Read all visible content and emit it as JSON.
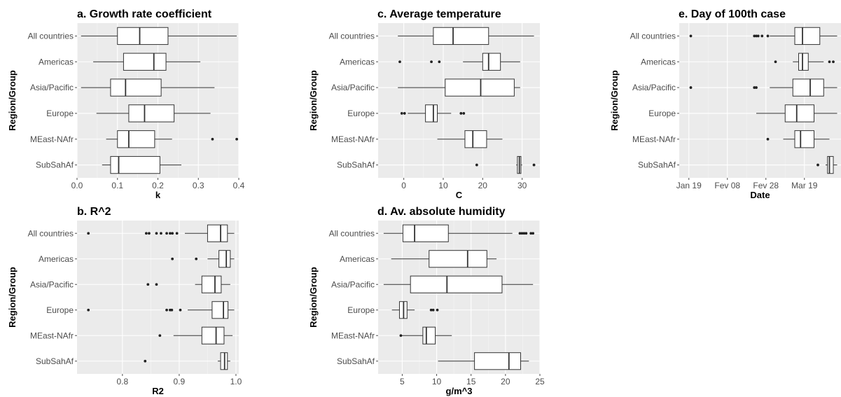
{
  "chart_data": [
    {
      "type": "box",
      "title": "a. Growth rate coefficient",
      "xlabel": "k",
      "ylabel": "Region/Group",
      "xlim": [
        0,
        0.4
      ],
      "xticks": [
        0.0,
        0.1,
        0.2,
        0.3,
        0.4
      ],
      "xtick_labels": [
        "0.0",
        "0.1",
        "0.2",
        "0.3",
        "0.4"
      ],
      "categories": [
        "All countries",
        "Americas",
        "Asia/Pacific",
        "Europe",
        "MEast-NAfr",
        "SubSahAf"
      ],
      "boxes": [
        {
          "min": 0.01,
          "q1": 0.1,
          "median": 0.155,
          "q3": 0.225,
          "max": 0.395,
          "outliers": []
        },
        {
          "min": 0.04,
          "q1": 0.115,
          "median": 0.19,
          "q3": 0.22,
          "max": 0.305,
          "outliers": []
        },
        {
          "min": 0.01,
          "q1": 0.083,
          "median": 0.12,
          "q3": 0.208,
          "max": 0.34,
          "outliers": []
        },
        {
          "min": 0.048,
          "q1": 0.128,
          "median": 0.167,
          "q3": 0.24,
          "max": 0.33,
          "outliers": []
        },
        {
          "min": 0.072,
          "q1": 0.1,
          "median": 0.128,
          "q3": 0.192,
          "max": 0.235,
          "outliers": [
            0.335,
            0.395
          ]
        },
        {
          "min": 0.062,
          "q1": 0.083,
          "median": 0.103,
          "q3": 0.205,
          "max": 0.258,
          "outliers": []
        }
      ]
    },
    {
      "type": "box",
      "title": "b. R^2",
      "xlabel": "R2",
      "ylabel": "Region/Group",
      "xlim": [
        0.72,
        1.005
      ],
      "xticks": [
        0.8,
        0.9,
        1.0
      ],
      "xtick_labels": [
        "0.8",
        "0.9",
        "1.0"
      ],
      "categories": [
        "All countries",
        "Americas",
        "Asia/Pacific",
        "Europe",
        "MEast-NAfr",
        "SubSahAf"
      ],
      "boxes": [
        {
          "min": 0.91,
          "q1": 0.95,
          "median": 0.973,
          "q3": 0.985,
          "max": 0.997,
          "outliers": [
            0.74,
            0.842,
            0.847,
            0.86,
            0.868,
            0.878,
            0.884,
            0.888,
            0.896
          ]
        },
        {
          "min": 0.95,
          "q1": 0.97,
          "median": 0.983,
          "q3": 0.99,
          "max": 0.997,
          "outliers": [
            0.888,
            0.93
          ]
        },
        {
          "min": 0.928,
          "q1": 0.94,
          "median": 0.963,
          "q3": 0.974,
          "max": 0.99,
          "outliers": [
            0.845,
            0.86
          ]
        },
        {
          "min": 0.915,
          "q1": 0.958,
          "median": 0.978,
          "q3": 0.986,
          "max": 0.997,
          "outliers": [
            0.74,
            0.878,
            0.884,
            0.887,
            0.902
          ]
        },
        {
          "min": 0.89,
          "q1": 0.94,
          "median": 0.965,
          "q3": 0.979,
          "max": 0.994,
          "outliers": [
            0.866
          ]
        },
        {
          "min": 0.968,
          "q1": 0.973,
          "median": 0.98,
          "q3": 0.985,
          "max": 0.99,
          "outliers": [
            0.84
          ]
        }
      ]
    },
    {
      "type": "box",
      "title": "c. Average temperature",
      "xlabel": "C",
      "ylabel": "Region/Group",
      "xlim": [
        -6.5,
        34.5
      ],
      "xticks": [
        0,
        10,
        20,
        30
      ],
      "xtick_labels": [
        "0",
        "10",
        "20",
        "30"
      ],
      "categories": [
        "All countries",
        "Americas",
        "Asia/Pacific",
        "Europe",
        "MEast-NAfr",
        "SubSahAf"
      ],
      "boxes": [
        {
          "min": -1.5,
          "q1": 7.5,
          "median": 12.5,
          "q3": 21.5,
          "max": 33.0,
          "outliers": []
        },
        {
          "min": 15.0,
          "q1": 20.0,
          "median": 21.5,
          "q3": 24.5,
          "max": 29.5,
          "outliers": [
            -1.0,
            7.0,
            9.0
          ]
        },
        {
          "min": -1.5,
          "q1": 10.5,
          "median": 19.5,
          "q3": 28.0,
          "max": 29.5,
          "outliers": []
        },
        {
          "min": 1.0,
          "q1": 5.5,
          "median": 7.5,
          "q3": 8.5,
          "max": 12.0,
          "outliers": [
            -0.5,
            0.2,
            14.5,
            15.2
          ]
        },
        {
          "min": 8.5,
          "q1": 15.5,
          "median": 17.5,
          "q3": 21.0,
          "max": 25.0,
          "outliers": []
        },
        {
          "min": 28.5,
          "q1": 28.8,
          "median": 29.3,
          "q3": 29.7,
          "max": 30.0,
          "outliers": [
            18.5,
            33.0
          ]
        }
      ]
    },
    {
      "type": "box",
      "title": "d. Av. absolute humidity",
      "xlabel": "g/m^3",
      "ylabel": "Region/Group",
      "xlim": [
        1.5,
        25.0
      ],
      "xticks": [
        5,
        10,
        15,
        20,
        25
      ],
      "xtick_labels": [
        "5",
        "10",
        "15",
        "20",
        "25"
      ],
      "categories": [
        "All countries",
        "Americas",
        "Asia/Pacific",
        "Europe",
        "MEast-NAfr",
        "SubSahAf"
      ],
      "boxes": [
        {
          "min": 2.3,
          "q1": 5.1,
          "median": 6.8,
          "q3": 11.7,
          "max": 21.0,
          "outliers": [
            22.1,
            22.4,
            22.7,
            23.0,
            23.7,
            24.0
          ]
        },
        {
          "min": 3.4,
          "q1": 8.9,
          "median": 14.5,
          "q3": 17.3,
          "max": 18.7,
          "outliers": []
        },
        {
          "min": 2.3,
          "q1": 6.2,
          "median": 11.5,
          "q3": 19.5,
          "max": 24.0,
          "outliers": []
        },
        {
          "min": 3.5,
          "q1": 4.6,
          "median": 5.2,
          "q3": 5.7,
          "max": 6.8,
          "outliers": [
            9.2,
            9.5,
            10.1
          ]
        },
        {
          "min": 4.8,
          "q1": 8.0,
          "median": 8.5,
          "q3": 9.8,
          "max": 12.2,
          "outliers": [
            4.8
          ]
        },
        {
          "min": 10.2,
          "q1": 15.5,
          "median": 20.5,
          "q3": 22.2,
          "max": 23.4,
          "outliers": []
        }
      ]
    },
    {
      "type": "box",
      "title": "e. Day of 100th case",
      "xlabel": "Date",
      "ylabel": "Region/Group",
      "x_unit": "date",
      "xlim": [
        "2020-01-14",
        "2020-04-07"
      ],
      "xticks": [
        "2020-01-19",
        "2020-02-08",
        "2020-02-28",
        "2020-03-19"
      ],
      "xtick_labels": [
        "Jan 19",
        "Fev 08",
        "Fev 28",
        "Mar 19"
      ],
      "categories": [
        "All countries",
        "Americas",
        "Asia/Pacific",
        "Europe",
        "MEast-NAfr",
        "SubSahAf"
      ],
      "boxes": [
        {
          "min": "2020-03-01",
          "q1": "2020-03-14",
          "median": "2020-03-18",
          "q3": "2020-03-27",
          "max": "2020-04-05",
          "outliers": [
            "2020-01-20",
            "2020-02-22",
            "2020-02-23",
            "2020-02-24",
            "2020-02-26",
            "2020-02-29"
          ]
        },
        {
          "min": "2020-03-13",
          "q1": "2020-03-16",
          "median": "2020-03-18",
          "q3": "2020-03-21",
          "max": "2020-03-29",
          "outliers": [
            "2020-03-04",
            "2020-04-01",
            "2020-04-03"
          ]
        },
        {
          "min": "2020-03-01",
          "q1": "2020-03-13",
          "median": "2020-03-22",
          "q3": "2020-03-29",
          "max": "2020-04-05",
          "outliers": [
            "2020-01-20",
            "2020-02-22",
            "2020-02-23"
          ]
        },
        {
          "min": "2020-02-23",
          "q1": "2020-03-09",
          "median": "2020-03-15",
          "q3": "2020-03-24",
          "max": "2020-04-05",
          "outliers": []
        },
        {
          "min": "2020-03-08",
          "q1": "2020-03-14",
          "median": "2020-03-17",
          "q3": "2020-03-24",
          "max": "2020-04-01",
          "outliers": [
            "2020-02-29"
          ]
        },
        {
          "min": "2020-03-30",
          "q1": "2020-03-31",
          "median": "2020-04-01",
          "q3": "2020-04-03",
          "max": "2020-04-05",
          "outliers": [
            "2020-03-26"
          ]
        }
      ]
    }
  ]
}
